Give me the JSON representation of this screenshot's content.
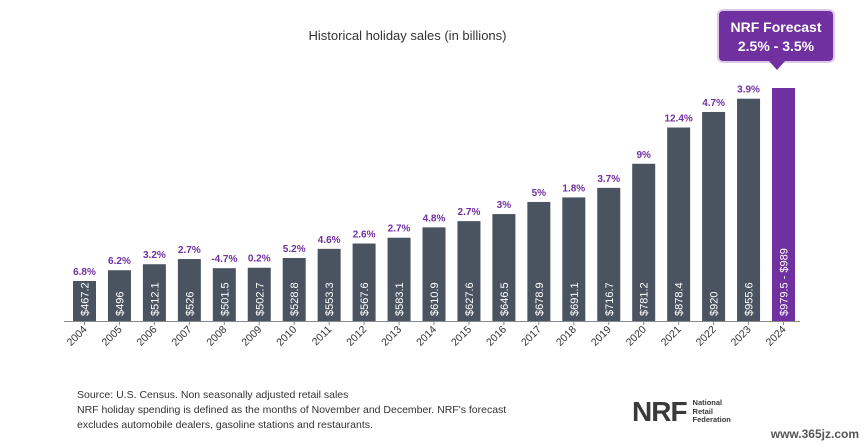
{
  "chart_data": {
    "type": "bar",
    "title": "Historical holiday sales (in billions)",
    "categories": [
      "2004",
      "2005",
      "2006",
      "2007",
      "2008",
      "2009",
      "2010",
      "2011",
      "2012",
      "2013",
      "2014",
      "2015",
      "2016",
      "2017",
      "2018",
      "2019",
      "2020",
      "2021",
      "2022",
      "2023",
      "2024"
    ],
    "values": [
      467.2,
      496,
      512.1,
      526,
      501.5,
      502.7,
      528.8,
      553.3,
      567.6,
      583.1,
      610.9,
      627.6,
      646.5,
      678.9,
      691.1,
      716.7,
      781.2,
      878.4,
      920,
      955.6,
      984.25
    ],
    "value_labels": [
      "$467.2",
      "$496",
      "$512.1",
      "$526",
      "$501.5",
      "$502.7",
      "$528.8",
      "$553.3",
      "$567.6",
      "$583.1",
      "$610.9",
      "$627.6",
      "$646.5",
      "$678.9",
      "$691.1",
      "$716.7",
      "$781.2",
      "$878.4",
      "$920",
      "$955.6",
      "$979.5 - $989"
    ],
    "growth_labels": [
      "6.8%",
      "6.2%",
      "3.2%",
      "2.7%",
      "-4.7%",
      "0.2%",
      "5.2%",
      "4.6%",
      "2.6%",
      "2.7%",
      "4.8%",
      "2.7%",
      "3%",
      "5%",
      "1.8%",
      "3.7%",
      "9%",
      "12.4%",
      "4.7%",
      "3.9%",
      ""
    ],
    "highlight_index": 20,
    "xlabel": "",
    "ylabel": "",
    "ylim": [
      0,
      1000
    ]
  },
  "forecast": {
    "title": "NRF Forecast",
    "range": "2.5% - 3.5%"
  },
  "notes": [
    "Source: U.S. Census. Non  seasonally adjusted retail sales",
    "NRF holiday spending is defined as the months of November and December. NRF's forecast",
    "excludes automobile dealers, gasoline stations and restaurants."
  ],
  "logo": {
    "mark": "NRF",
    "line1": "National",
    "line2": "Retail",
    "line3": "Federation"
  },
  "watermark": "www.365jz.com",
  "colors": {
    "bar": "#4a5461",
    "highlight": "#7030a0",
    "growth": "#7030a0",
    "axis": "#888888"
  }
}
